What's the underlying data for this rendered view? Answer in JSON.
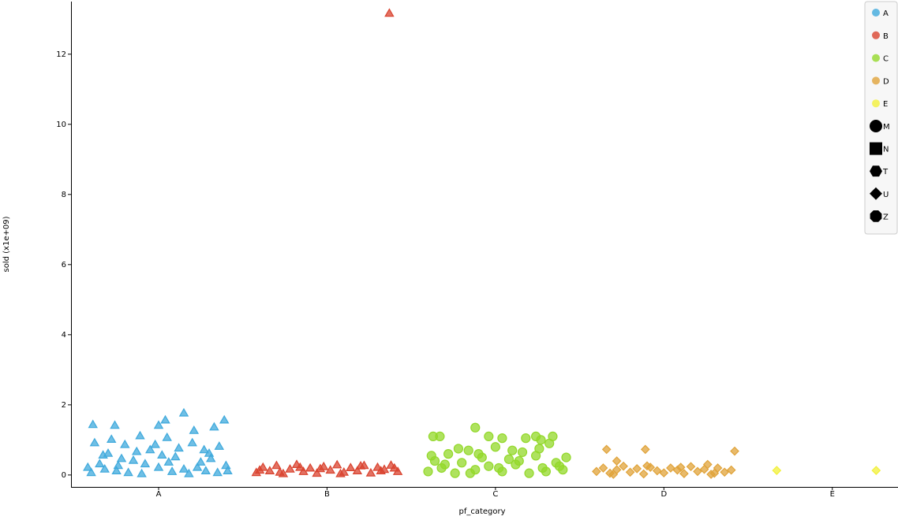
{
  "chart_data": {
    "type": "strip",
    "x_label": "pf_category",
    "y_label": "sold (x1e+09)",
    "xlim": [
      -0.52,
      4.39
    ],
    "xticks": [
      {
        "value": 0,
        "label": "A"
      },
      {
        "value": 1,
        "label": "B"
      },
      {
        "value": 2,
        "label": "C"
      },
      {
        "value": 3,
        "label": "D"
      },
      {
        "value": 4,
        "label": "E"
      }
    ],
    "ylim": [
      -0.34,
      13.5
    ],
    "yticks": [
      0,
      2,
      4,
      6,
      8,
      10,
      12
    ],
    "legend_position": "top-right",
    "series": [
      {
        "name": "A",
        "color": "#3fa9dc",
        "marker": "triangle",
        "x": [
          -0.4,
          -0.35,
          -0.3,
          -0.25,
          -0.2,
          -0.15,
          -0.1,
          -0.05,
          0,
          0.05,
          0.1,
          0.15,
          0.2,
          0.25,
          0.3,
          0.35,
          0.4,
          -0.39,
          -0.26,
          -0.11,
          0,
          0.04,
          0.15,
          0.21,
          0.33,
          0.39,
          -0.38,
          -0.32,
          -0.22,
          -0.08,
          0.08,
          0.12,
          0.28,
          0.36,
          -0.42,
          -0.18,
          0.02,
          0.18,
          0.31,
          -0.28,
          -0.33,
          -0.13,
          0.06,
          0.23,
          0.41,
          -0.02,
          -0.24,
          0.27
        ],
        "values": [
          0.05,
          0.3,
          0.6,
          0.1,
          0.85,
          0.4,
          0.02,
          0.7,
          0.2,
          1.05,
          0.5,
          0.15,
          0.9,
          0.35,
          0.6,
          0.05,
          0.25,
          1.42,
          1.4,
          1.1,
          1.4,
          1.55,
          1.75,
          1.25,
          1.35,
          1.55,
          0.9,
          0.15,
          0.45,
          0.3,
          0.08,
          0.75,
          0.1,
          0.8,
          0.2,
          0.05,
          0.55,
          0.02,
          0.45,
          1.0,
          0.55,
          0.65,
          0.35,
          0.2,
          0.1,
          0.85,
          0.25,
          0.7
        ]
      },
      {
        "name": "B",
        "color": "#d9432f",
        "marker": "triangle",
        "x": [
          0.58,
          0.62,
          0.66,
          0.7,
          0.74,
          0.78,
          0.82,
          0.86,
          0.9,
          0.94,
          0.98,
          1.02,
          1.06,
          1.1,
          1.14,
          1.18,
          1.22,
          1.26,
          1.3,
          1.34,
          1.38,
          1.42,
          0.6,
          0.72,
          0.84,
          0.96,
          1.08,
          1.2,
          1.32,
          1.4,
          1.37
        ],
        "values": [
          0.05,
          0.2,
          0.1,
          0.25,
          0.02,
          0.15,
          0.28,
          0.08,
          0.18,
          0.03,
          0.22,
          0.12,
          0.27,
          0.06,
          0.19,
          0.1,
          0.25,
          0.04,
          0.2,
          0.14,
          0.26,
          0.08,
          0.12,
          0.06,
          0.2,
          0.16,
          0.02,
          0.24,
          0.1,
          0.18,
          13.15
        ]
      },
      {
        "name": "C",
        "color": "#93d82a",
        "marker": "circle",
        "x": [
          1.6,
          1.64,
          1.68,
          1.72,
          1.76,
          1.8,
          1.84,
          1.88,
          1.92,
          1.96,
          2,
          2.04,
          2.08,
          2.12,
          2.16,
          2.2,
          2.24,
          2.28,
          2.32,
          2.36,
          2.4,
          1.63,
          1.67,
          1.88,
          1.96,
          2.04,
          2.18,
          2.24,
          2.27,
          2.34,
          1.7,
          1.78,
          1.9,
          2.02,
          2.14,
          2.26,
          2.38,
          1.62,
          1.85,
          2.1,
          2.3,
          2.42
        ],
        "values": [
          0.1,
          0.4,
          0.2,
          0.6,
          0.05,
          0.35,
          0.7,
          0.15,
          0.5,
          0.25,
          0.8,
          0.1,
          0.45,
          0.3,
          0.65,
          0.05,
          0.55,
          0.2,
          0.9,
          0.35,
          0.15,
          1.1,
          1.1,
          1.35,
          1.1,
          1.05,
          1.05,
          1.1,
          1.0,
          1.1,
          0.3,
          0.75,
          0.6,
          0.2,
          0.4,
          0.75,
          0.25,
          0.55,
          0.05,
          0.7,
          0.1,
          0.5
        ]
      },
      {
        "name": "D",
        "color": "#e0a33a",
        "marker": "diamond",
        "x": [
          2.6,
          2.64,
          2.68,
          2.72,
          2.76,
          2.8,
          2.84,
          2.88,
          2.92,
          2.96,
          3,
          3.04,
          3.08,
          3.12,
          3.16,
          3.2,
          3.24,
          3.28,
          3.32,
          3.36,
          3.4,
          2.66,
          2.89,
          3.42,
          2.72,
          2.7,
          2.9,
          3.1,
          3.3,
          3.26
        ],
        "values": [
          0.1,
          0.2,
          0.05,
          0.15,
          0.25,
          0.08,
          0.18,
          0.03,
          0.22,
          0.12,
          0.06,
          0.2,
          0.14,
          0.04,
          0.24,
          0.1,
          0.16,
          0.02,
          0.2,
          0.08,
          0.14,
          0.73,
          0.73,
          0.68,
          0.4,
          0.02,
          0.26,
          0.22,
          0.05,
          0.3
        ]
      },
      {
        "name": "E",
        "color": "#f2f03a",
        "marker": "diamond",
        "x": [
          3.67,
          4.26
        ],
        "values": [
          0.13,
          0.13
        ]
      }
    ],
    "shape_legend": [
      {
        "label": "M",
        "shape": "circle"
      },
      {
        "label": "N",
        "shape": "square"
      },
      {
        "label": "T",
        "shape": "hexagon"
      },
      {
        "label": "U",
        "shape": "diamond"
      },
      {
        "label": "Z",
        "shape": "octagon"
      }
    ]
  }
}
